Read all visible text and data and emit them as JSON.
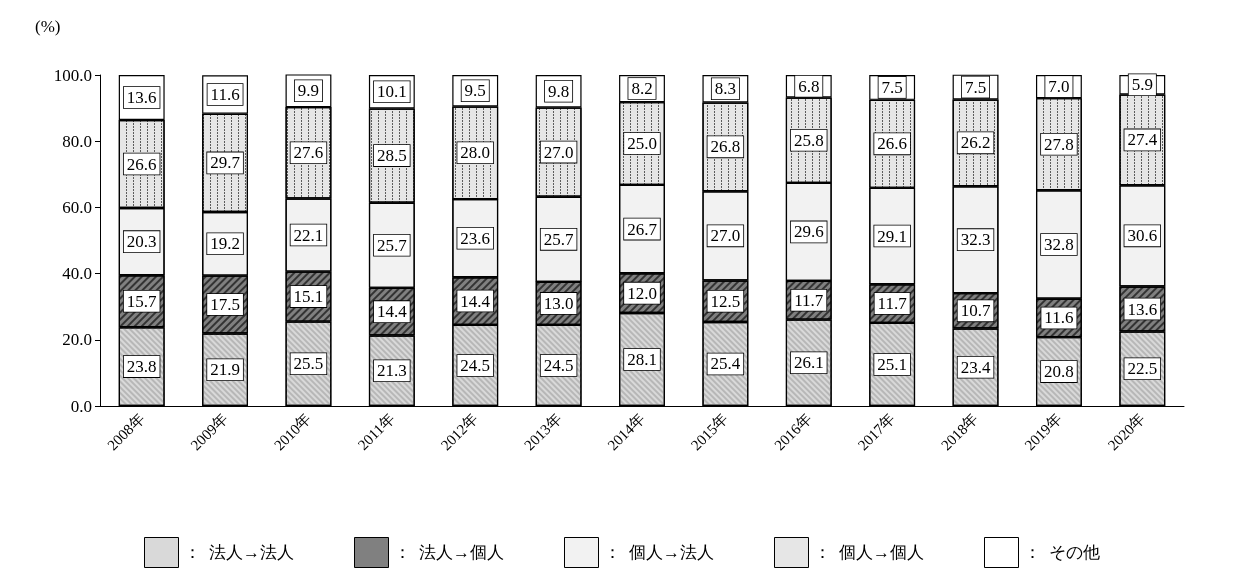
{
  "chart_data": {
    "type": "bar",
    "stacked": true,
    "ylabel": "(%)",
    "categories": [
      "2008年",
      "2009年",
      "2010年",
      "2011年",
      "2012年",
      "2013年",
      "2014年",
      "2015年",
      "2016年",
      "2017年",
      "2018年",
      "2019年",
      "2020年"
    ],
    "series": [
      {
        "name": "：  法人→法人",
        "color": "#d9d9d9",
        "values": [
          23.8,
          21.9,
          25.5,
          21.3,
          24.5,
          24.5,
          28.1,
          25.4,
          26.1,
          25.1,
          23.4,
          20.8,
          22.5
        ],
        "value_labels": [
          "23.8",
          "21.9",
          "25.5",
          "21.3",
          "24.5",
          "24.5",
          "28.1",
          "25.4",
          "26.1",
          "25.1",
          "23.4",
          "20.8",
          "22.5"
        ]
      },
      {
        "name": "：  法人→個人",
        "color": "#808080",
        "values": [
          15.7,
          17.5,
          15.1,
          14.4,
          14.4,
          13.0,
          12.0,
          12.5,
          11.7,
          11.7,
          10.7,
          11.6,
          13.6
        ],
        "value_labels": [
          "15.7",
          "17.5",
          "15.1",
          "14.4",
          "14.4",
          "13.0",
          "12.0",
          "12.5",
          "11.7",
          "11.7",
          "10.7",
          "11.6",
          "13.6"
        ]
      },
      {
        "name": "：  個人→法人",
        "color": "#f2f2f2",
        "values": [
          20.3,
          19.2,
          22.1,
          25.7,
          23.6,
          25.7,
          26.7,
          27.0,
          29.6,
          29.1,
          32.3,
          32.8,
          30.6
        ],
        "value_labels": [
          "20.3",
          "19.2",
          "22.1",
          "25.7",
          "23.6",
          "25.7",
          "26.7",
          "27.0",
          "29.6",
          "29.1",
          "32.3",
          "32.8",
          "30.6"
        ]
      },
      {
        "name": "：  個人→個人",
        "color": "#e6e6e6",
        "values": [
          26.6,
          29.7,
          27.6,
          28.5,
          28.0,
          27.0,
          25.0,
          26.8,
          25.8,
          26.6,
          26.2,
          27.8,
          27.4
        ],
        "value_labels": [
          "26.6",
          "29.7",
          "27.6",
          "28.5",
          "28.0",
          "27.0",
          "25.0",
          "26.8",
          "25.8",
          "26.6",
          "26.2",
          "27.8",
          "27.4"
        ]
      },
      {
        "name": "：  その他",
        "color": "#ffffff",
        "values": [
          13.6,
          11.6,
          9.9,
          10.1,
          9.5,
          9.8,
          8.2,
          8.3,
          6.8,
          7.5,
          7.5,
          7.0,
          5.9
        ],
        "value_labels": [
          "13.6",
          "11.6",
          "9.9",
          "10.1",
          "9.5",
          "9.8",
          "8.2",
          "8.3",
          "6.8",
          "7.5",
          "7.5",
          "7.0",
          "5.9"
        ]
      }
    ],
    "ylim": [
      0,
      100
    ],
    "yticks": [
      {
        "value": 0,
        "label": "0.0"
      },
      {
        "value": 20,
        "label": "20.0"
      },
      {
        "value": 40,
        "label": "40.0"
      },
      {
        "value": 60,
        "label": "60.0"
      },
      {
        "value": 80,
        "label": "80.0"
      },
      {
        "value": 100,
        "label": "100.0"
      }
    ],
    "grid": false,
    "legend": "bottom"
  }
}
